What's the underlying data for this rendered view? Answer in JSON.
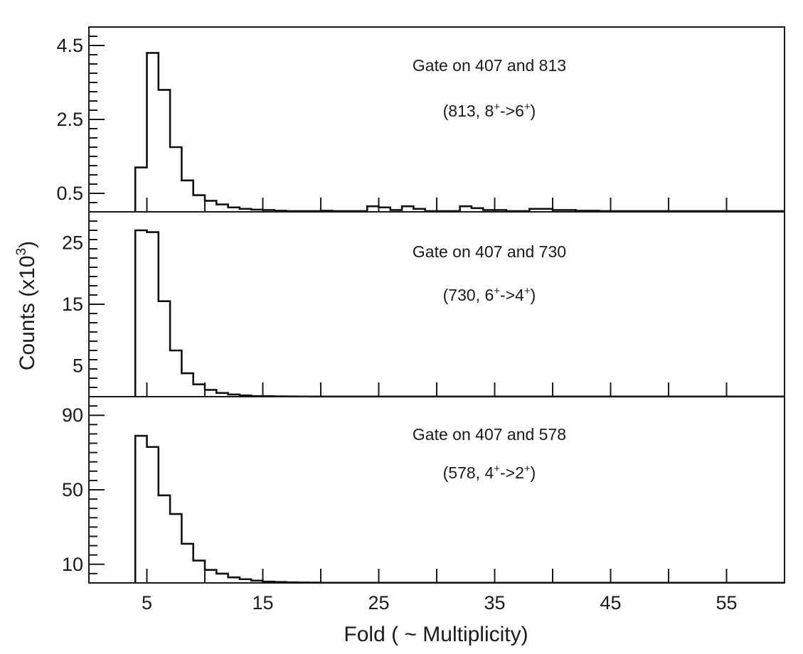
{
  "chart_data": [
    {
      "type": "histogram",
      "xlabel": "Fold ( ~ Multiplicity)",
      "ylabel": "Counts (x10³)",
      "ylabel_parts": {
        "base": "Counts (x10",
        "sup": "3",
        "end": ")"
      },
      "xlim": [
        0,
        60
      ],
      "ylim": [
        0,
        5.0
      ],
      "xticks": [
        5,
        15,
        25,
        35,
        45,
        55
      ],
      "yticks": [
        0.5,
        2.5,
        4.5
      ],
      "bin_width": 1,
      "bin_start": 4,
      "values": [
        1.2,
        4.3,
        3.3,
        1.75,
        0.85,
        0.45,
        0.3,
        0.2,
        0.12,
        0.08,
        0.06,
        0.05,
        0.03,
        0.02,
        0.02,
        0.02,
        0.03,
        0.02,
        0.02,
        0.02,
        0.15,
        0.12,
        0.05,
        0.15,
        0.08,
        0.02,
        0.02,
        0.02,
        0.15,
        0.1,
        0.05,
        0.05,
        0.02,
        0.02,
        0.08,
        0.08,
        0.05,
        0.05,
        0.03,
        0.03,
        0.02,
        0.02,
        0.02,
        0.02,
        0.02,
        0.02,
        0.02,
        0.02,
        0.02,
        0.02,
        0.02,
        0.02,
        0.02,
        0.02,
        0.02,
        0.02
      ],
      "annotation": {
        "line1": "Gate on 407 and 813",
        "line2": {
          "lead": "(813, 8",
          "sup1": "+",
          "mid": "->6",
          "sup2": "+",
          "end": ")"
        }
      }
    },
    {
      "type": "histogram",
      "xlabel": "Fold ( ~ Multiplicity)",
      "ylabel": "Counts (x10³)",
      "xlim": [
        0,
        60
      ],
      "ylim": [
        0,
        30
      ],
      "xticks": [
        5,
        15,
        25,
        35,
        45,
        55
      ],
      "yticks": [
        5,
        15,
        25
      ],
      "bin_width": 1,
      "bin_start": 4,
      "values": [
        27,
        26.7,
        15.5,
        7.5,
        3.8,
        2.0,
        1.1,
        0.6,
        0.35,
        0.2,
        0.1,
        0.08,
        0.05,
        0.04,
        0.03,
        0.02,
        0.02,
        0.02,
        0.02,
        0.02,
        0.02,
        0.02,
        0.02,
        0.02,
        0.02,
        0.02,
        0.02,
        0.02,
        0.02,
        0.02,
        0.02,
        0.02,
        0.02,
        0.02,
        0.02,
        0.02,
        0.02,
        0.02,
        0.02,
        0.02,
        0.02,
        0.02,
        0.02,
        0.02,
        0.02,
        0.02,
        0.02,
        0.02,
        0.02,
        0.02,
        0.02,
        0.02,
        0.02,
        0.02,
        0.02,
        0.02
      ],
      "annotation": {
        "line1": "Gate on 407 and 730",
        "line2": {
          "lead": "(730, 6",
          "sup1": "+",
          "mid": "->4",
          "sup2": "+",
          "end": ")"
        }
      }
    },
    {
      "type": "histogram",
      "xlabel": "Fold ( ~ Multiplicity)",
      "ylabel": "Counts (x10³)",
      "xlim": [
        0,
        60
      ],
      "ylim": [
        0,
        100
      ],
      "xticks": [
        5,
        15,
        25,
        35,
        45,
        55
      ],
      "yticks": [
        10,
        50,
        90
      ],
      "bin_width": 1,
      "bin_start": 4,
      "values": [
        79,
        73,
        47,
        37,
        21,
        12,
        7,
        5,
        3,
        2,
        1.2,
        0.7,
        0.5,
        0.3,
        0.2,
        0.15,
        0.1,
        0.1,
        0.1,
        0.1,
        0.1,
        0.1,
        0.1,
        0.1,
        0.1,
        0.1,
        0.1,
        0.1,
        0.1,
        0.1,
        0.1,
        0.1,
        0.1,
        0.1,
        0.1,
        0.1,
        0.1,
        0.1,
        0.1,
        0.1,
        0.1,
        0.1,
        0.1,
        0.1,
        0.1,
        0.1,
        0.1,
        0.1,
        0.1,
        0.1,
        0.1,
        0.1,
        0.1,
        0.1,
        0.1,
        0.1
      ],
      "annotation": {
        "line1": "Gate on 407 and 578",
        "line2": {
          "lead": "(578, 4",
          "sup1": "+",
          "mid": "->2",
          "sup2": "+",
          "end": ")"
        }
      }
    }
  ]
}
